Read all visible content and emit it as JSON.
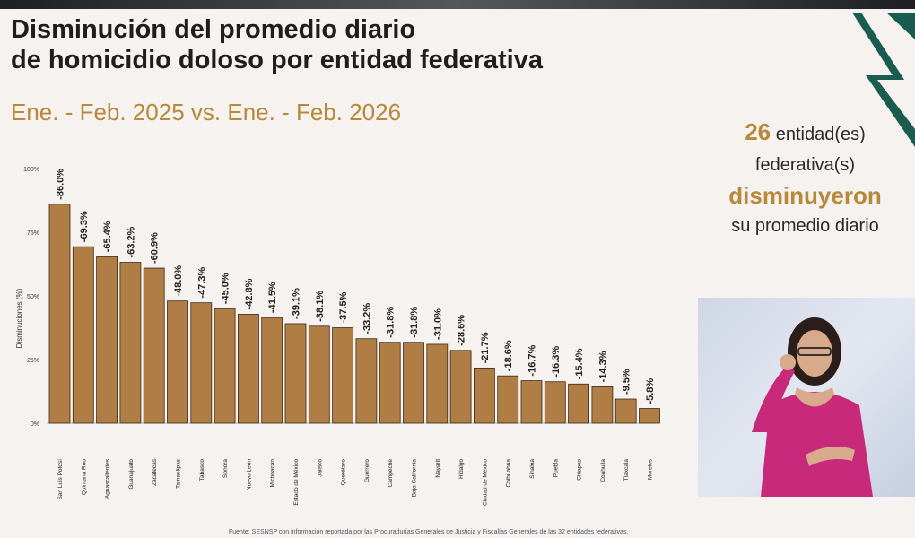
{
  "title_line1": "Disminución del promedio diario",
  "title_line2": "de homicidio doloso por entidad federativa",
  "subtitle": "Ene. - Feb. 2025 vs. Ene. - Feb. 2026",
  "summary": {
    "count": "26",
    "line1": "entidad(es)",
    "line2": "federativa(s)",
    "line3": "disminuyeron",
    "line4": "su promedio diario"
  },
  "footer": "Fuente: SESNSP con información reportada por las Procuradurías Generales de Justicia y Fiscalías Generales de las 32 entidades federativas.",
  "colors": {
    "bar": "#b07d45",
    "bar_stroke": "#3a2a18",
    "accent": "#b7893a",
    "logo": "#1a5c4f"
  },
  "chart_data": {
    "type": "bar",
    "ylabel": "Disminuciones (%)",
    "ylim": [
      0,
      100
    ],
    "yticks": [
      0,
      25,
      50,
      75,
      100
    ],
    "ytick_labels": [
      "0%",
      "25%",
      "50%",
      "75%",
      "100%"
    ],
    "categories": [
      "San Luis Potosí",
      "Quintana Roo",
      "Aguascalientes",
      "Guanajuato",
      "Zacatecas",
      "Tamaulipas",
      "Tabasco",
      "Sonora",
      "Nuevo León",
      "Michoacán",
      "Estado de México",
      "Jalisco",
      "Querétaro",
      "Guerrero",
      "Campeche",
      "Baja California",
      "Nayarit",
      "Hidalgo",
      "Ciudad de México",
      "Chihuahua",
      "Sinaloa",
      "Puebla",
      "Chiapas",
      "Coahuila",
      "Tlaxcala",
      "Morelos"
    ],
    "values": [
      86.0,
      69.3,
      65.4,
      63.2,
      60.9,
      48.0,
      47.3,
      45.0,
      42.8,
      41.5,
      39.1,
      38.1,
      37.5,
      33.2,
      31.8,
      31.8,
      31.0,
      28.6,
      21.7,
      18.6,
      16.7,
      16.3,
      15.4,
      14.3,
      9.5,
      5.8
    ],
    "data_labels": [
      "-86.0%",
      "-69.3%",
      "-65.4%",
      "-63.2%",
      "-60.9%",
      "-48.0%",
      "-47.3%",
      "-45.0%",
      "-42.8%",
      "-41.5%",
      "-39.1%",
      "-38.1%",
      "-37.5%",
      "-33.2%",
      "-31.8%",
      "-31.8%",
      "-31.0%",
      "-28.6%",
      "-21.7%",
      "-18.6%",
      "-16.7%",
      "-16.3%",
      "-15.4%",
      "-14.3%",
      "-9.5%",
      "-5.8%"
    ]
  }
}
